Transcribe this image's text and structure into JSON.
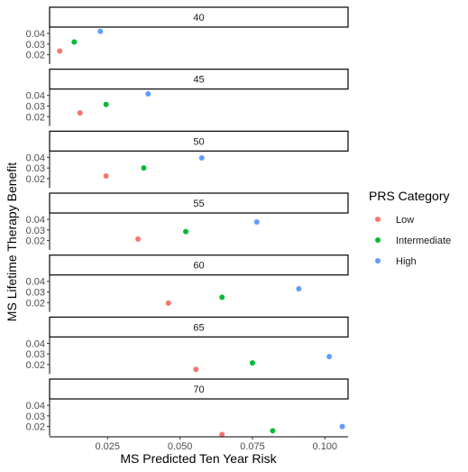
{
  "chart_data": {
    "type": "scatter",
    "facet_by": "age",
    "xlabel": "MS Predicted Ten Year Risk",
    "ylabel": "MS Lifetime Therapy Benefit",
    "xlim": [
      0.005,
      0.108
    ],
    "ylim": [
      0.012,
      0.046
    ],
    "x_ticks": [
      0.025,
      0.05,
      0.075,
      0.1
    ],
    "x_tick_labels": [
      "0.025",
      "0.050",
      "0.075",
      "0.100"
    ],
    "y_ticks": [
      0.02,
      0.03,
      0.04
    ],
    "y_tick_labels": [
      "0.02",
      "0.03",
      "0.04"
    ],
    "grid": false,
    "legend": {
      "title": "PRS Category",
      "position": "right",
      "entries": [
        {
          "name": "Low",
          "color": "#F8766D"
        },
        {
          "name": "Intermediate",
          "color": "#00BA38"
        },
        {
          "name": "High",
          "color": "#619CFF"
        }
      ]
    },
    "facets": [
      {
        "label": "40",
        "points": [
          {
            "category": "Low",
            "x": 0.0085,
            "y": 0.0235
          },
          {
            "category": "Intermediate",
            "x": 0.0135,
            "y": 0.032
          },
          {
            "category": "High",
            "x": 0.0225,
            "y": 0.042
          }
        ]
      },
      {
        "label": "45",
        "points": [
          {
            "category": "Low",
            "x": 0.0155,
            "y": 0.0235
          },
          {
            "category": "Intermediate",
            "x": 0.0245,
            "y": 0.0315
          },
          {
            "category": "High",
            "x": 0.039,
            "y": 0.0415
          }
        ]
      },
      {
        "label": "50",
        "points": [
          {
            "category": "Low",
            "x": 0.0245,
            "y": 0.0225
          },
          {
            "category": "Intermediate",
            "x": 0.0375,
            "y": 0.03
          },
          {
            "category": "High",
            "x": 0.0575,
            "y": 0.0395
          }
        ]
      },
      {
        "label": "55",
        "points": [
          {
            "category": "Low",
            "x": 0.0355,
            "y": 0.0215
          },
          {
            "category": "Intermediate",
            "x": 0.052,
            "y": 0.0285
          },
          {
            "category": "High",
            "x": 0.0765,
            "y": 0.0375
          }
        ]
      },
      {
        "label": "60",
        "points": [
          {
            "category": "Low",
            "x": 0.046,
            "y": 0.0195
          },
          {
            "category": "Intermediate",
            "x": 0.0645,
            "y": 0.025
          },
          {
            "category": "High",
            "x": 0.091,
            "y": 0.033
          }
        ]
      },
      {
        "label": "65",
        "points": [
          {
            "category": "Low",
            "x": 0.0555,
            "y": 0.0155
          },
          {
            "category": "Intermediate",
            "x": 0.075,
            "y": 0.0215
          },
          {
            "category": "High",
            "x": 0.1015,
            "y": 0.0275
          }
        ]
      },
      {
        "label": "70",
        "points": [
          {
            "category": "Low",
            "x": 0.0645,
            "y": 0.0125
          },
          {
            "category": "Intermediate",
            "x": 0.082,
            "y": 0.016
          },
          {
            "category": "High",
            "x": 0.106,
            "y": 0.02
          }
        ]
      }
    ]
  }
}
